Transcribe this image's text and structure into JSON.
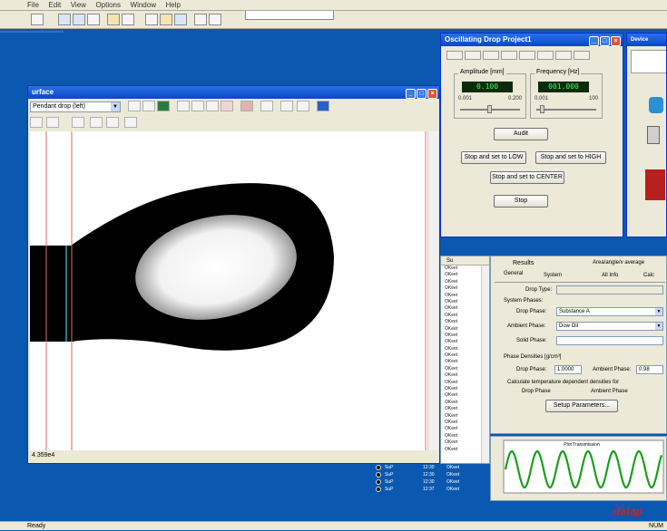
{
  "menu": {
    "items": [
      "File",
      "Edit",
      "View",
      "Options",
      "Window",
      "Help"
    ]
  },
  "image_window": {
    "title": "urface",
    "combo_value": "Pendant drop (left)",
    "status": "4.359e4"
  },
  "device_window": {
    "title": "Oscillating Drop Project1",
    "tabs": [
      "",
      "",
      "",
      "",
      "",
      "",
      "",
      ""
    ],
    "amplitude_label": "Amplitude [mm]",
    "amplitude_value": "0.100",
    "amp_min": "0.001",
    "amp_max": "0.200",
    "frequency_label": "Frequency [Hz]",
    "frequency_value": "001.000",
    "freq_min": "0.001",
    "freq_max": "100",
    "btn_audit": "Audit",
    "btn_low": "Stop and set to LOW",
    "btn_high": "Stop and set to HIGH",
    "btn_center": "Stop and set to CENTER",
    "btn_stop": "Stop"
  },
  "device_control": {
    "title": "Device Control"
  },
  "list_panel": {
    "header": "Su",
    "rows": [
      "OKeet",
      "OKeet",
      "OKeet",
      "OKeet",
      "OKeet",
      "OKeet",
      "OKeet",
      "OKeet",
      "OKeet",
      "OKeet",
      "OKeet",
      "OKeet",
      "OKeet",
      "OKeet",
      "OKeet",
      "OKeet",
      "OKeet",
      "OKeet",
      "OKeet",
      "OKeet",
      "OKeet",
      "OKeet",
      "OKeet",
      "OKeet",
      "OKeet",
      "OKeet",
      "OKeet",
      "OKeet"
    ]
  },
  "results": {
    "tab_results": "Results",
    "tab_avg": "Area/angle/v average",
    "subtab_general": "General",
    "subtab_system": "System",
    "subtab_all_info": "All Info",
    "subtab_calc": "Calc",
    "drop_type_label": "Drop Type:",
    "system_phases_label": "System Phases:",
    "drop_phase_label": "Drop Phase:",
    "drop_phase_value": "Substance A",
    "ambient_phase_label": "Ambient Phase:",
    "ambient_phase_value": "Dow Oil",
    "solid_phase_label": "Solid Phase:",
    "phase_densities_label": "Phase Densities [g/cm³]",
    "drop_phase_density_label": "Drop Phase:",
    "drop_phase_density_value": "1.0000",
    "ambient_phase_density_label": "Ambient Phase:",
    "ambient_phase_density_value": "0.98",
    "calc_label": "Calculate temperature dependent densities for",
    "calc_drop": "Drop Phase",
    "calc_ambient": "Ambient Phase",
    "setup_button": "Setup Parameters..."
  },
  "bottom_list": [
    {
      "name": "SuP",
      "time": "12:30",
      "status": "OKeet"
    },
    {
      "name": "SuP",
      "time": "12:30",
      "status": "OKeet"
    },
    {
      "name": "SuP",
      "time": "12:30",
      "status": "OKeet"
    },
    {
      "name": "SuP",
      "time": "12:37",
      "status": "OKeet"
    }
  ],
  "plot": {
    "title": "Plot Transmission",
    "color": "#1aa01a"
  },
  "logo": "datap",
  "statusbar": {
    "left": "Ready",
    "right": "NUM"
  },
  "colors": {
    "desktop": "#0b58b0",
    "accent": "#2a6fd4"
  }
}
